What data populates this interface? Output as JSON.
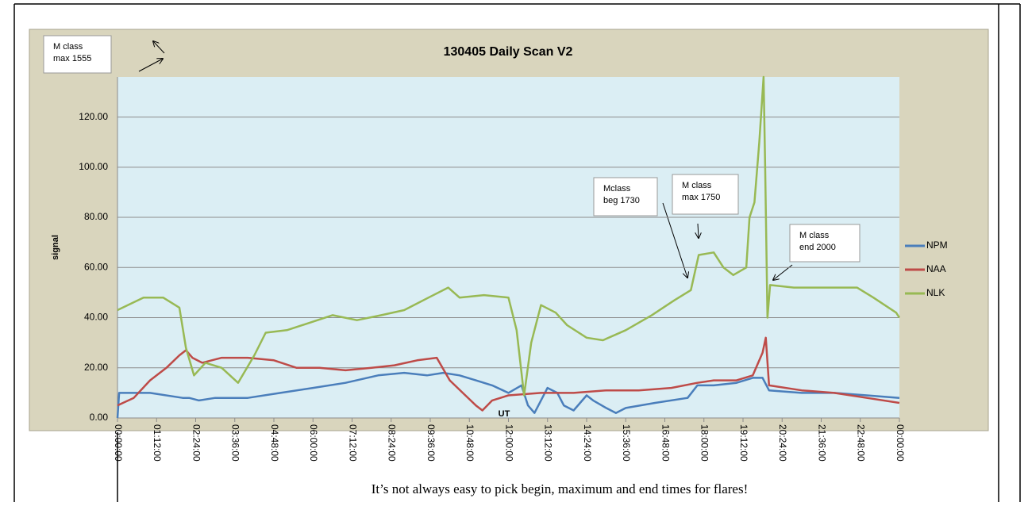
{
  "chart_data": {
    "type": "line",
    "title": "130405 Daily Scan V2",
    "x_label": "UT",
    "y_label": "signal",
    "xlim": [
      0,
      24
    ],
    "xticks": [
      {
        "value": 0,
        "label": "00:00:00"
      },
      {
        "value": 1.2,
        "label": "01:12:00"
      },
      {
        "value": 2.4,
        "label": "02:24:00"
      },
      {
        "value": 3.6,
        "label": "03:36:00"
      },
      {
        "value": 4.8,
        "label": "04:48:00"
      },
      {
        "value": 6,
        "label": "06:00:00"
      },
      {
        "value": 7.2,
        "label": "07:12:00"
      },
      {
        "value": 8.4,
        "label": "08:24:00"
      },
      {
        "value": 9.6,
        "label": "09:36:00"
      },
      {
        "value": 10.8,
        "label": "10:48:00"
      },
      {
        "value": 12,
        "label": "12:00:00"
      },
      {
        "value": 13.2,
        "label": "13:12:00"
      },
      {
        "value": 14.4,
        "label": "14:24:00"
      },
      {
        "value": 15.6,
        "label": "15:36:00"
      },
      {
        "value": 16.8,
        "label": "16:48:00"
      },
      {
        "value": 18,
        "label": "18:00:00"
      },
      {
        "value": 19.2,
        "label": "19:12:00"
      },
      {
        "value": 20.4,
        "label": "20:24:00"
      },
      {
        "value": 21.6,
        "label": "21:36:00"
      },
      {
        "value": 22.8,
        "label": "22:48:00"
      },
      {
        "value": 24,
        "label": "00:00:00"
      }
    ],
    "ylim": [
      0,
      136
    ],
    "yticks": [
      {
        "value": 0,
        "label": "0.00"
      },
      {
        "value": 20,
        "label": "20.00"
      },
      {
        "value": 40,
        "label": "40.00"
      },
      {
        "value": 60,
        "label": "60.00"
      },
      {
        "value": 80,
        "label": "80.00"
      },
      {
        "value": 100,
        "label": "100.00"
      },
      {
        "value": 120,
        "label": "120.00"
      }
    ],
    "grid": true,
    "series": [
      {
        "name": "NPM",
        "color": "#4a7ebb",
        "x": [
          0,
          0.05,
          1,
          2,
          2.2,
          2.5,
          3,
          4,
          5,
          6,
          7,
          8,
          8.8,
          9.5,
          10,
          10.5,
          11,
          11.5,
          12,
          12.4,
          12.6,
          12.8,
          13.2,
          13.5,
          13.7,
          14,
          14.2,
          14.4,
          14.6,
          15,
          15.3,
          15.6,
          16.5,
          17.5,
          17.8,
          18.3,
          19,
          19.5,
          19.8,
          20,
          21,
          22,
          23,
          24
        ],
        "values": [
          0,
          10,
          10,
          8,
          8,
          7,
          8,
          8,
          10,
          12,
          14,
          17,
          18,
          17,
          18,
          17,
          15,
          13,
          10,
          13,
          5,
          2,
          12,
          10,
          5,
          3,
          6,
          9,
          7,
          4,
          2,
          4,
          6,
          8,
          13,
          13,
          14,
          16,
          16,
          11,
          10,
          10,
          9,
          8
        ]
      },
      {
        "name": "NAA",
        "color": "#be4b48",
        "x": [
          0,
          0.5,
          1,
          1.5,
          1.9,
          2.1,
          2.3,
          2.6,
          3.2,
          4,
          4.8,
          5.5,
          6.2,
          7,
          7.8,
          8.5,
          9.2,
          9.8,
          10.2,
          10.6,
          11,
          11.2,
          11.5,
          12,
          13,
          14,
          15,
          16,
          17,
          17.8,
          18.3,
          19,
          19.5,
          19.8,
          19.9,
          20,
          21,
          22,
          23,
          24
        ],
        "values": [
          5,
          8,
          15,
          20,
          25,
          27,
          24,
          22,
          24,
          24,
          23,
          20,
          20,
          19,
          20,
          21,
          23,
          24,
          15,
          10,
          5,
          3,
          7,
          9,
          10,
          10,
          11,
          11,
          12,
          14,
          15,
          15,
          17,
          26,
          32,
          13,
          11,
          10,
          8,
          6
        ]
      },
      {
        "name": "NLK",
        "color": "#98b954",
        "x": [
          0,
          0.8,
          1.4,
          1.9,
          2.1,
          2.35,
          2.7,
          3.2,
          3.7,
          4.2,
          4.55,
          5.2,
          5.9,
          6.6,
          7.35,
          8.1,
          8.8,
          9.55,
          10.15,
          10.5,
          11.25,
          12,
          12.25,
          12.48,
          12.7,
          13,
          13.45,
          13.8,
          14.4,
          14.9,
          15.6,
          16.4,
          17.1,
          17.6,
          17.84,
          18.3,
          18.6,
          18.9,
          19.3,
          19.4,
          19.55,
          19.7,
          19.83,
          19.88,
          19.95,
          20.03,
          20.76,
          22.7,
          23.2,
          23.9,
          24
        ],
        "values": [
          43,
          48,
          48,
          44,
          28,
          17,
          22,
          20,
          14,
          25,
          34,
          35,
          38,
          41,
          39,
          41,
          43,
          48,
          52,
          48,
          49,
          48,
          35,
          9,
          30,
          45,
          42,
          37,
          32,
          31,
          35,
          41,
          47,
          51,
          65,
          66,
          60,
          57,
          60,
          80,
          86,
          110,
          136,
          100,
          40,
          53,
          52,
          52,
          48,
          42,
          40
        ]
      }
    ],
    "annotations": [
      {
        "lines": [
          "M class",
          "max 1555"
        ]
      },
      {
        "lines": [
          "Mclass",
          "beg 1730"
        ]
      },
      {
        "lines": [
          "M class",
          "max 1750"
        ]
      },
      {
        "lines": [
          "M class",
          "end 2000"
        ]
      }
    ]
  },
  "caption": "It’s not always easy to pick begin, maximum and end times for flares!"
}
